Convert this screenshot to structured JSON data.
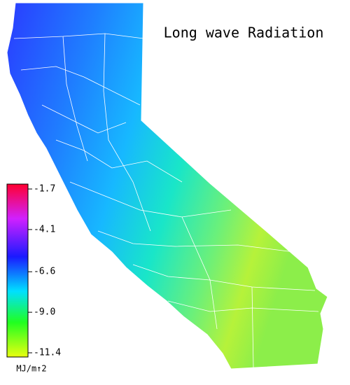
{
  "title": "Long wave Radiation",
  "legend": {
    "ticks": [
      -1.7,
      -4.1,
      -6.6,
      {
        "value": -9.0,
        "label": "-9.0"
      },
      -11.4
    ],
    "unit": "MJ/m↑2"
  }
}
